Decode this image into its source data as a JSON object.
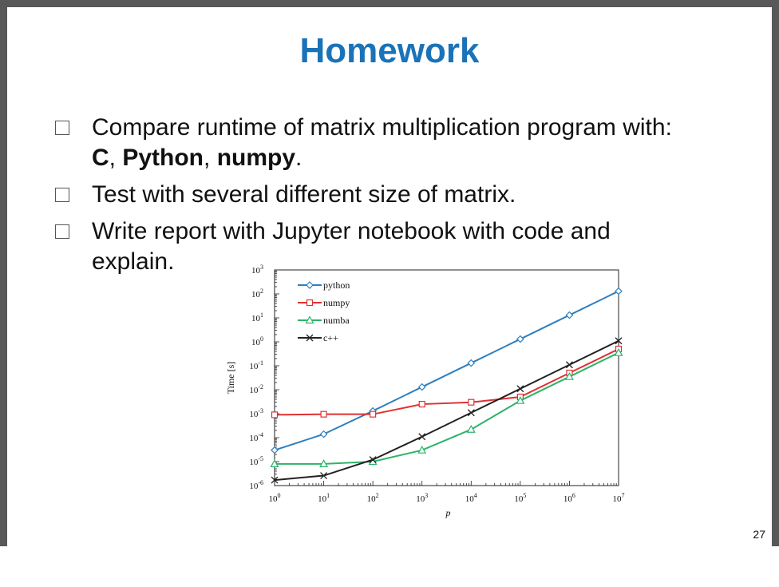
{
  "slide": {
    "title": "Homework",
    "page_number": "27",
    "bullets": [
      {
        "line1": "Compare runtime of matrix multiplication program with:",
        "b1": "C",
        "s1": ", ",
        "b2": "Python",
        "s2": ", ",
        "b3": "numpy",
        "s3": "."
      },
      {
        "line1": "Test with  several different size of matrix."
      },
      {
        "line1": "Write report with Jupyter notebook with code and",
        "line2": "explain."
      }
    ]
  },
  "chart_data": {
    "type": "line",
    "xlabel": "p",
    "ylabel": "Time [s]",
    "xscale": "log",
    "yscale": "log",
    "xlim": [
      1,
      10000000
    ],
    "ylim": [
      1e-06,
      1000
    ],
    "x_ticks": [
      "10^0",
      "10^1",
      "10^2",
      "10^3",
      "10^4",
      "10^5",
      "10^6",
      "10^7"
    ],
    "y_ticks": [
      "10^3",
      "10^2",
      "10^1",
      "10^0",
      "10^-1",
      "10^-2",
      "10^-3",
      "10^-4",
      "10^-5",
      "10^-6"
    ],
    "legend": "top-left",
    "x": [
      1,
      10,
      100,
      1000,
      10000,
      100000,
      1000000,
      10000000
    ],
    "series": [
      {
        "name": "python",
        "color": "#2e7fbf",
        "marker": "diamond",
        "values": [
          3e-05,
          0.00014,
          0.0013,
          0.013,
          0.13,
          1.3,
          13,
          130
        ]
      },
      {
        "name": "numpy",
        "color": "#e03030",
        "marker": "square",
        "values": [
          0.0009,
          0.00095,
          0.00095,
          0.0025,
          0.003,
          0.005,
          0.05,
          0.5
        ]
      },
      {
        "name": "numba",
        "color": "#2db36a",
        "marker": "triangle",
        "values": [
          8e-06,
          8e-06,
          1e-05,
          3e-05,
          0.00022,
          0.0035,
          0.035,
          0.35
        ]
      },
      {
        "name": "c++",
        "color": "#222222",
        "marker": "x",
        "values": [
          1.7e-06,
          2.6e-06,
          1.2e-05,
          0.00011,
          0.0011,
          0.011,
          0.11,
          1.1
        ]
      }
    ]
  }
}
